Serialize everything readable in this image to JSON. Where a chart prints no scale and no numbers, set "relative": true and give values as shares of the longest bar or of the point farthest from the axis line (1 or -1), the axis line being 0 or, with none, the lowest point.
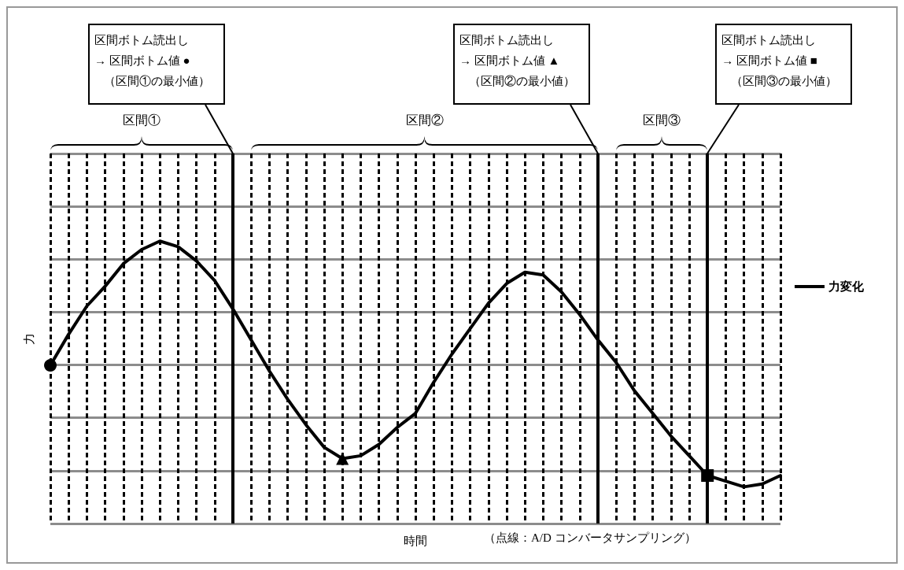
{
  "chart_data": {
    "type": "line",
    "relative": true,
    "xlabel": "時間",
    "ylabel": "力",
    "categories": [
      null,
      null,
      null,
      null,
      null,
      null,
      null,
      null,
      null,
      null,
      null,
      null,
      null,
      null,
      null,
      null,
      null,
      null,
      null,
      null,
      null,
      null,
      null,
      null,
      null,
      null,
      null,
      null,
      null,
      null,
      null,
      null,
      null,
      null,
      null,
      null,
      null,
      null,
      null,
      null,
      null
    ],
    "grid": true,
    "legend": "right",
    "series": [
      {
        "name": "力変化",
        "color": "#000000",
        "marker": "none",
        "line_style": "solid",
        "values": [
          0.56,
          0.67,
          0.77,
          0.84,
          0.92,
          0.97,
          1.0,
          0.98,
          0.93,
          0.86,
          0.76,
          0.65,
          0.54,
          0.44,
          0.35,
          0.27,
          0.23,
          0.24,
          0.28,
          0.34,
          0.39,
          0.5,
          0.6,
          0.69,
          0.78,
          0.85,
          0.89,
          0.88,
          0.82,
          0.74,
          0.65,
          0.57,
          0.47,
          0.39,
          0.31,
          0.24,
          0.17,
          0.15,
          0.13,
          0.14,
          0.17
        ]
      },
      {
        "color": "#000000",
        "marker": "circle",
        "values": [
          0.56,
          null,
          null,
          null,
          null,
          null,
          null,
          null,
          null,
          null,
          null,
          null,
          null,
          null,
          null,
          null,
          null,
          null,
          null,
          null,
          null,
          null,
          null,
          null,
          null,
          null,
          null,
          null,
          null,
          null,
          null,
          null,
          null,
          null,
          null,
          null,
          null,
          null,
          null,
          null,
          null
        ]
      },
      {
        "color": "#000000",
        "marker": "triangle",
        "values": [
          null,
          null,
          null,
          null,
          null,
          null,
          null,
          null,
          null,
          null,
          null,
          null,
          null,
          null,
          null,
          null,
          0.23,
          null,
          null,
          null,
          null,
          null,
          null,
          null,
          null,
          null,
          null,
          null,
          null,
          null,
          null,
          null,
          null,
          null,
          null,
          null,
          null,
          null,
          null,
          null,
          null
        ]
      },
      {
        "color": "#000000",
        "marker": "square",
        "values": [
          null,
          null,
          null,
          null,
          null,
          null,
          null,
          null,
          null,
          null,
          null,
          null,
          null,
          null,
          null,
          null,
          null,
          null,
          null,
          null,
          null,
          null,
          null,
          null,
          null,
          null,
          null,
          null,
          null,
          null,
          null,
          null,
          null,
          null,
          null,
          null,
          0.17,
          null,
          null,
          null,
          null
        ]
      }
    ],
    "annotations": [
      "区間ボトム読出し\n→ 区間ボトム値 ●\n（区間①の最小値）",
      "区間ボトム読出し\n→ 区間ボトム値 ▲\n（区間②の最小値）",
      "区間ボトム読出し\n→ 区間ボトム値 ■\n（区間③の最小値）",
      "区間①",
      "区間②",
      "区間③",
      "（点線：A/D コンバータサンプリング）"
    ]
  }
}
